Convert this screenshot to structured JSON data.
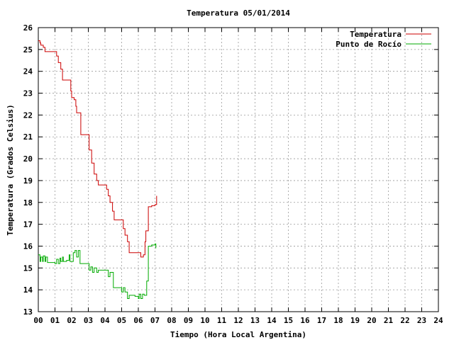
{
  "chart_data": {
    "type": "line",
    "title": "Temperatura 05/01/2014",
    "xlabel": "Tiempo (Hora Local Argentina)",
    "ylabel": "Temperatura (Grados Celsius)",
    "xlim": [
      0,
      24
    ],
    "ylim": [
      13,
      26
    ],
    "x_ticks": [
      0,
      1,
      2,
      3,
      4,
      5,
      6,
      7,
      8,
      9,
      10,
      11,
      12,
      13,
      14,
      15,
      16,
      17,
      18,
      19,
      20,
      21,
      22,
      23,
      24
    ],
    "x_tick_labels": [
      "00",
      "01",
      "02",
      "03",
      "04",
      "05",
      "06",
      "07",
      "08",
      "09",
      "10",
      "11",
      "12",
      "13",
      "14",
      "15",
      "16",
      "17",
      "18",
      "19",
      "20",
      "21",
      "22",
      "23",
      "24"
    ],
    "y_ticks": [
      13,
      14,
      15,
      16,
      17,
      18,
      19,
      20,
      21,
      22,
      23,
      24,
      25,
      26
    ],
    "y_tick_labels": [
      "13",
      "14",
      "15",
      "16",
      "17",
      "18",
      "19",
      "20",
      "21",
      "22",
      "23",
      "24",
      "25",
      "26"
    ],
    "grid": true,
    "legend_position": "top-right",
    "series": [
      {
        "name": "Temperatura",
        "color": "#cc0000",
        "x": [
          0,
          0.1,
          0.15,
          0.3,
          0.4,
          0.5,
          0.9,
          1.1,
          1.2,
          1.35,
          1.45,
          1.85,
          1.95,
          2.0,
          2.15,
          2.25,
          2.3,
          2.55,
          2.6,
          2.9,
          3.05,
          3.2,
          3.35,
          3.5,
          3.6,
          3.9,
          4.1,
          4.2,
          4.3,
          4.45,
          4.55,
          4.9,
          5.0,
          5.1,
          5.2,
          5.35,
          5.45,
          5.9,
          6.05,
          6.15,
          6.2,
          6.3,
          6.4,
          6.45,
          6.6,
          6.65,
          6.8,
          7.0,
          7.1
        ],
        "y": [
          25.4,
          25.3,
          25.2,
          25.1,
          24.9,
          24.9,
          24.9,
          24.7,
          24.4,
          24.1,
          23.6,
          23.6,
          23.1,
          22.8,
          22.7,
          22.4,
          22.1,
          21.1,
          21.1,
          21.1,
          20.4,
          19.8,
          19.3,
          19.0,
          18.8,
          18.8,
          18.6,
          18.3,
          18.0,
          17.6,
          17.2,
          17.2,
          17.2,
          16.8,
          16.5,
          16.2,
          15.7,
          15.7,
          15.7,
          15.5,
          15.5,
          15.6,
          16.2,
          16.7,
          17.8,
          17.8,
          17.85,
          17.9,
          18.3
        ]
      },
      {
        "name": "Punto de Rocío",
        "color": "#00aa00",
        "x": [
          0,
          0.1,
          0.15,
          0.25,
          0.3,
          0.4,
          0.45,
          0.55,
          1.0,
          1.1,
          1.2,
          1.3,
          1.35,
          1.45,
          1.5,
          1.7,
          1.85,
          1.9,
          2.1,
          2.2,
          2.3,
          2.4,
          2.5,
          2.6,
          2.9,
          3.05,
          3.15,
          3.25,
          3.35,
          3.5,
          3.6,
          4.1,
          4.2,
          4.3,
          4.5,
          4.6,
          4.9,
          5.0,
          5.1,
          5.2,
          5.35,
          5.45,
          5.8,
          5.9,
          6.0,
          6.05,
          6.15,
          6.25,
          6.35,
          6.5,
          6.6,
          6.8,
          7.0,
          7.05
        ],
        "y": [
          15.6,
          15.3,
          15.5,
          15.3,
          15.55,
          15.3,
          15.5,
          15.25,
          15.2,
          15.4,
          15.2,
          15.45,
          15.3,
          15.5,
          15.3,
          15.35,
          15.6,
          15.3,
          15.7,
          15.8,
          15.5,
          15.8,
          15.2,
          15.2,
          15.2,
          14.9,
          15.05,
          14.8,
          15.0,
          14.8,
          14.9,
          14.9,
          14.6,
          14.8,
          14.1,
          14.1,
          14.1,
          13.9,
          14.1,
          13.9,
          13.6,
          13.75,
          13.7,
          13.7,
          13.6,
          13.8,
          13.6,
          13.8,
          13.75,
          14.4,
          16.0,
          16.05,
          16.1,
          15.9
        ]
      }
    ]
  }
}
